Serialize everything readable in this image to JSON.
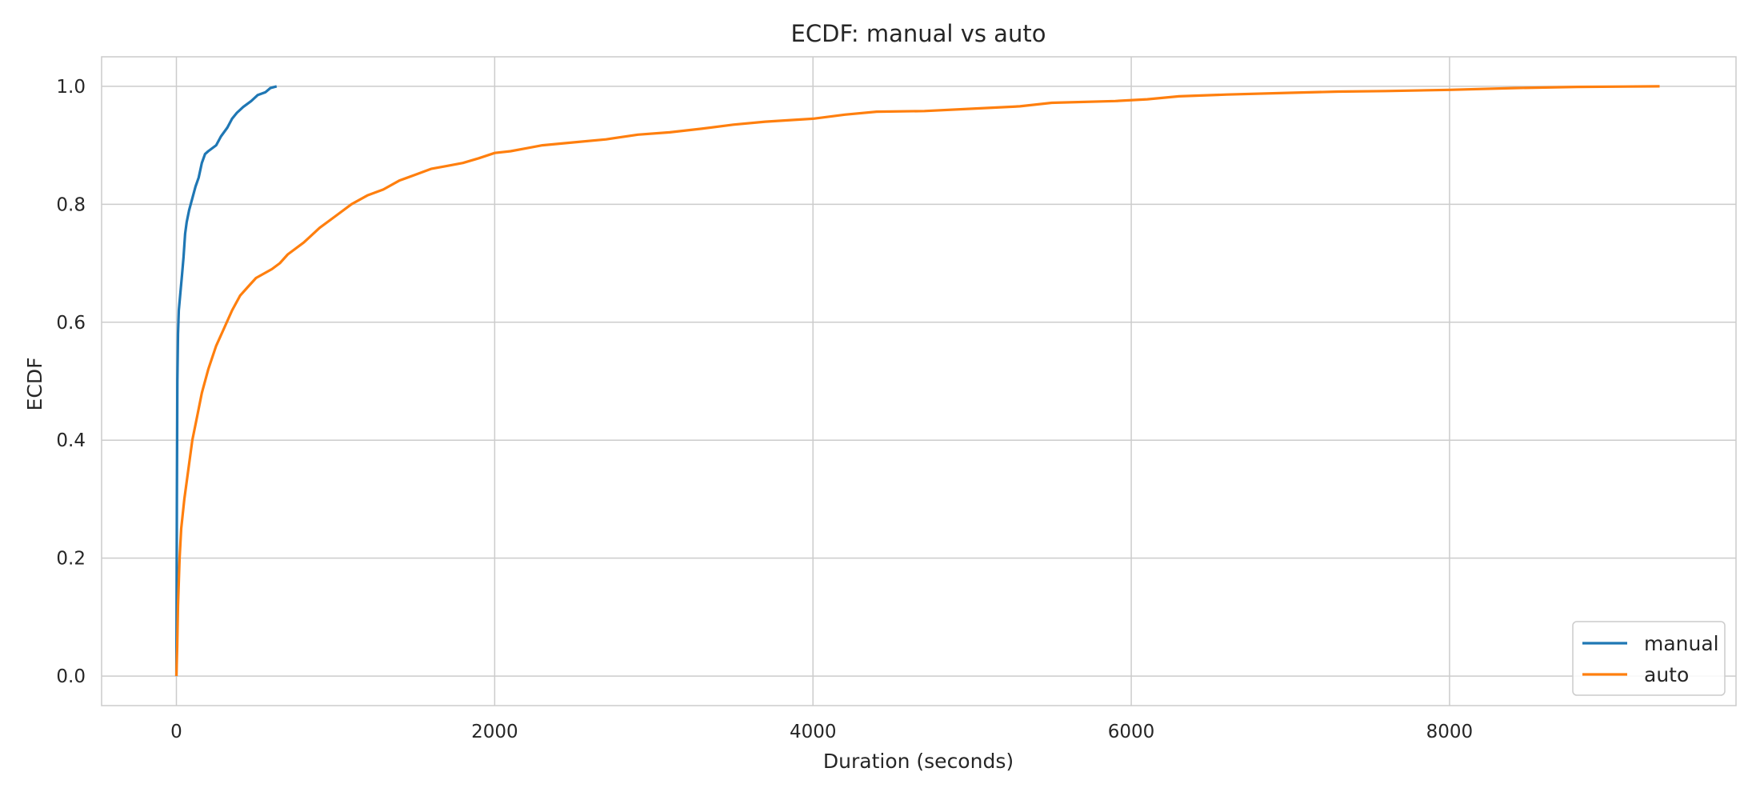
{
  "chart_data": {
    "type": "line",
    "title": "ECDF: manual vs auto",
    "xlabel": "Duration (seconds)",
    "ylabel": "ECDF",
    "xlim": [
      -470,
      9800
    ],
    "ylim": [
      -0.05,
      1.05
    ],
    "xticks": [
      0,
      2000,
      4000,
      6000,
      8000
    ],
    "xtick_labels": [
      "0",
      "2000",
      "4000",
      "6000",
      "8000"
    ],
    "yticks": [
      0.0,
      0.2,
      0.4,
      0.6,
      0.8,
      1.0
    ],
    "ytick_labels": [
      "0.0",
      "0.2",
      "0.4",
      "0.6",
      "0.8",
      "1.0"
    ],
    "grid": true,
    "legend_position": "lower-right",
    "series": [
      {
        "name": "manual",
        "color": "#1f77b4",
        "points": [
          [
            0,
            0.0
          ],
          [
            3,
            0.3
          ],
          [
            6,
            0.5
          ],
          [
            10,
            0.58
          ],
          [
            15,
            0.62
          ],
          [
            25,
            0.65
          ],
          [
            35,
            0.68
          ],
          [
            45,
            0.71
          ],
          [
            55,
            0.75
          ],
          [
            65,
            0.77
          ],
          [
            80,
            0.79
          ],
          [
            100,
            0.81
          ],
          [
            120,
            0.83
          ],
          [
            140,
            0.845
          ],
          [
            160,
            0.87
          ],
          [
            180,
            0.885
          ],
          [
            200,
            0.89
          ],
          [
            250,
            0.9
          ],
          [
            280,
            0.915
          ],
          [
            320,
            0.93
          ],
          [
            350,
            0.945
          ],
          [
            380,
            0.955
          ],
          [
            420,
            0.965
          ],
          [
            470,
            0.975
          ],
          [
            510,
            0.985
          ],
          [
            560,
            0.99
          ],
          [
            590,
            0.997
          ],
          [
            630,
            1.0
          ]
        ]
      },
      {
        "name": "auto",
        "color": "#ff7f0e",
        "points": [
          [
            0,
            0.0
          ],
          [
            5,
            0.05
          ],
          [
            10,
            0.12
          ],
          [
            20,
            0.2
          ],
          [
            30,
            0.25
          ],
          [
            50,
            0.3
          ],
          [
            75,
            0.35
          ],
          [
            100,
            0.4
          ],
          [
            130,
            0.44
          ],
          [
            160,
            0.48
          ],
          [
            200,
            0.52
          ],
          [
            250,
            0.56
          ],
          [
            300,
            0.59
          ],
          [
            350,
            0.62
          ],
          [
            400,
            0.645
          ],
          [
            450,
            0.66
          ],
          [
            500,
            0.675
          ],
          [
            600,
            0.69
          ],
          [
            650,
            0.7
          ],
          [
            700,
            0.715
          ],
          [
            800,
            0.735
          ],
          [
            900,
            0.76
          ],
          [
            1000,
            0.78
          ],
          [
            1100,
            0.8
          ],
          [
            1200,
            0.815
          ],
          [
            1300,
            0.825
          ],
          [
            1400,
            0.84
          ],
          [
            1500,
            0.85
          ],
          [
            1600,
            0.86
          ],
          [
            1700,
            0.865
          ],
          [
            1800,
            0.87
          ],
          [
            1900,
            0.878
          ],
          [
            2000,
            0.887
          ],
          [
            2100,
            0.89
          ],
          [
            2200,
            0.895
          ],
          [
            2300,
            0.9
          ],
          [
            2500,
            0.905
          ],
          [
            2700,
            0.91
          ],
          [
            2900,
            0.918
          ],
          [
            3100,
            0.922
          ],
          [
            3300,
            0.928
          ],
          [
            3500,
            0.935
          ],
          [
            3700,
            0.94
          ],
          [
            4000,
            0.945
          ],
          [
            4200,
            0.952
          ],
          [
            4400,
            0.957
          ],
          [
            4700,
            0.958
          ],
          [
            5000,
            0.962
          ],
          [
            5300,
            0.966
          ],
          [
            5500,
            0.972
          ],
          [
            5900,
            0.975
          ],
          [
            6100,
            0.978
          ],
          [
            6300,
            0.983
          ],
          [
            6600,
            0.986
          ],
          [
            7000,
            0.989
          ],
          [
            7300,
            0.991
          ],
          [
            7600,
            0.992
          ],
          [
            8000,
            0.994
          ],
          [
            8400,
            0.997
          ],
          [
            8800,
            0.999
          ],
          [
            9320,
            1.0
          ]
        ]
      }
    ]
  }
}
